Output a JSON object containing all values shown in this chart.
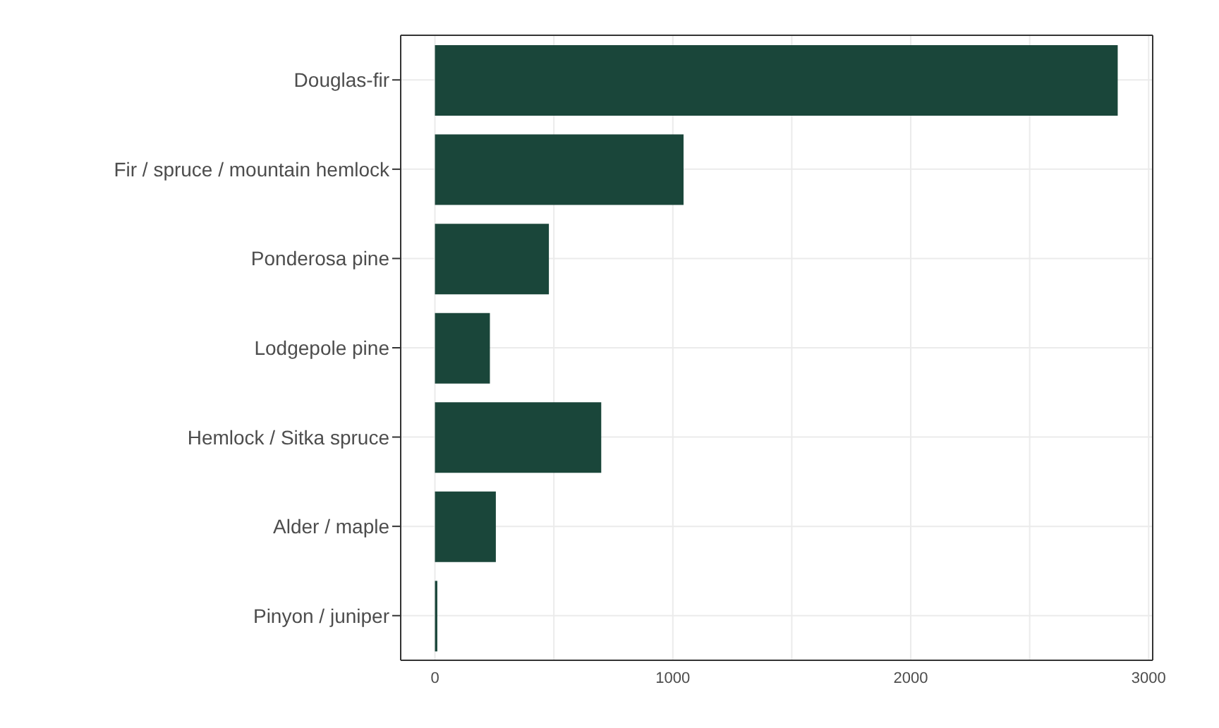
{
  "chart_data": {
    "type": "bar",
    "orientation": "horizontal",
    "categories": [
      "Douglas-fir",
      "Fir / spruce / mountain hemlock",
      "Ponderosa pine",
      "Lodgepole pine",
      "Hemlock / Sitka spruce",
      "Alder / maple",
      "Pinyon / juniper"
    ],
    "values": [
      2870,
      1045,
      479,
      231,
      699,
      256,
      10
    ],
    "color": "#1a463a",
    "xlim": [
      -144,
      3017
    ],
    "xticks": [
      0,
      {
        "value": 500,
        "label": null
      },
      1000,
      {
        "value": 1500,
        "label": null
      },
      2000,
      {
        "value": 2500,
        "label": null
      },
      3000
    ],
    "grid": true
  }
}
